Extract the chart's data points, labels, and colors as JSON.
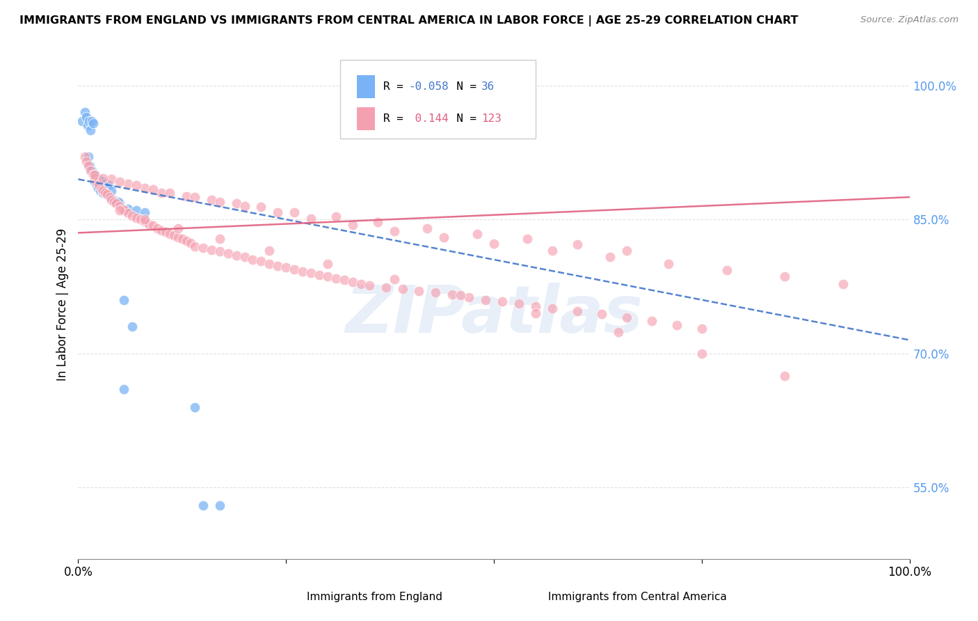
{
  "title": "IMMIGRANTS FROM ENGLAND VS IMMIGRANTS FROM CENTRAL AMERICA IN LABOR FORCE | AGE 25-29 CORRELATION CHART",
  "source": "Source: ZipAtlas.com",
  "ylabel": "In Labor Force | Age 25-29",
  "xlim": [
    0.0,
    1.0
  ],
  "ylim": [
    0.47,
    1.04
  ],
  "y_tick_values": [
    0.55,
    0.7,
    0.85,
    1.0
  ],
  "legend_R_england": "-0.058",
  "legend_N_england": "36",
  "legend_R_central": "0.144",
  "legend_N_central": "123",
  "england_color": "#7ab3f5",
  "central_color": "#f5a0b0",
  "england_line_color": "#4477cc",
  "central_line_color": "#e06080",
  "watermark_text": "ZIPatlas",
  "eng_line_x0": 0.0,
  "eng_line_y0": 0.895,
  "eng_line_x1": 1.0,
  "eng_line_y1": 0.715,
  "cen_line_x0": 0.0,
  "cen_line_y0": 0.835,
  "cen_line_x1": 1.0,
  "cen_line_y1": 0.875,
  "england_points_x": [
    0.005,
    0.008,
    0.01,
    0.011,
    0.013,
    0.015,
    0.016,
    0.018,
    0.02,
    0.022,
    0.024,
    0.026,
    0.03,
    0.034,
    0.038,
    0.042,
    0.05,
    0.06,
    0.07,
    0.08,
    0.012,
    0.014,
    0.016,
    0.02,
    0.024,
    0.028,
    0.032,
    0.036,
    0.04,
    0.048,
    0.055,
    0.065,
    0.15,
    0.17,
    0.055,
    0.14
  ],
  "england_points_y": [
    0.96,
    0.97,
    0.965,
    0.955,
    0.96,
    0.95,
    0.96,
    0.958,
    0.892,
    0.888,
    0.885,
    0.882,
    0.88,
    0.878,
    0.876,
    0.872,
    0.868,
    0.862,
    0.86,
    0.858,
    0.92,
    0.91,
    0.905,
    0.9,
    0.895,
    0.893,
    0.89,
    0.888,
    0.882,
    0.87,
    0.76,
    0.73,
    0.53,
    0.53,
    0.66,
    0.64
  ],
  "central_points_x": [
    0.008,
    0.01,
    0.012,
    0.015,
    0.018,
    0.02,
    0.022,
    0.025,
    0.028,
    0.03,
    0.032,
    0.035,
    0.038,
    0.04,
    0.043,
    0.046,
    0.05,
    0.053,
    0.056,
    0.06,
    0.065,
    0.07,
    0.075,
    0.08,
    0.085,
    0.09,
    0.095,
    0.1,
    0.105,
    0.11,
    0.115,
    0.12,
    0.125,
    0.13,
    0.135,
    0.14,
    0.15,
    0.16,
    0.17,
    0.18,
    0.19,
    0.2,
    0.21,
    0.22,
    0.23,
    0.24,
    0.25,
    0.26,
    0.27,
    0.28,
    0.29,
    0.3,
    0.31,
    0.32,
    0.33,
    0.34,
    0.35,
    0.37,
    0.39,
    0.41,
    0.43,
    0.45,
    0.47,
    0.49,
    0.51,
    0.53,
    0.55,
    0.57,
    0.6,
    0.63,
    0.66,
    0.69,
    0.72,
    0.75,
    0.04,
    0.06,
    0.08,
    0.1,
    0.13,
    0.16,
    0.19,
    0.22,
    0.26,
    0.31,
    0.36,
    0.42,
    0.48,
    0.54,
    0.6,
    0.66,
    0.02,
    0.03,
    0.05,
    0.07,
    0.09,
    0.11,
    0.14,
    0.17,
    0.2,
    0.24,
    0.28,
    0.33,
    0.38,
    0.44,
    0.5,
    0.57,
    0.64,
    0.71,
    0.78,
    0.85,
    0.92,
    0.05,
    0.08,
    0.12,
    0.17,
    0.23,
    0.3,
    0.38,
    0.46,
    0.55,
    0.65,
    0.75,
    0.85
  ],
  "central_points_y": [
    0.92,
    0.915,
    0.91,
    0.905,
    0.9,
    0.896,
    0.892,
    0.888,
    0.884,
    0.882,
    0.88,
    0.878,
    0.875,
    0.872,
    0.87,
    0.868,
    0.865,
    0.862,
    0.86,
    0.857,
    0.854,
    0.852,
    0.85,
    0.848,
    0.845,
    0.843,
    0.84,
    0.838,
    0.836,
    0.834,
    0.832,
    0.83,
    0.828,
    0.826,
    0.824,
    0.82,
    0.818,
    0.816,
    0.814,
    0.812,
    0.81,
    0.808,
    0.805,
    0.803,
    0.8,
    0.798,
    0.796,
    0.794,
    0.792,
    0.79,
    0.788,
    0.786,
    0.784,
    0.782,
    0.78,
    0.778,
    0.776,
    0.774,
    0.772,
    0.77,
    0.768,
    0.766,
    0.763,
    0.76,
    0.758,
    0.756,
    0.753,
    0.75,
    0.747,
    0.744,
    0.74,
    0.736,
    0.732,
    0.728,
    0.895,
    0.89,
    0.885,
    0.88,
    0.876,
    0.872,
    0.868,
    0.864,
    0.858,
    0.853,
    0.847,
    0.84,
    0.834,
    0.828,
    0.822,
    0.815,
    0.9,
    0.896,
    0.892,
    0.888,
    0.884,
    0.88,
    0.875,
    0.87,
    0.865,
    0.858,
    0.851,
    0.844,
    0.837,
    0.83,
    0.823,
    0.815,
    0.808,
    0.8,
    0.793,
    0.786,
    0.778,
    0.86,
    0.85,
    0.84,
    0.828,
    0.815,
    0.8,
    0.783,
    0.765,
    0.745,
    0.724,
    0.7,
    0.675
  ]
}
